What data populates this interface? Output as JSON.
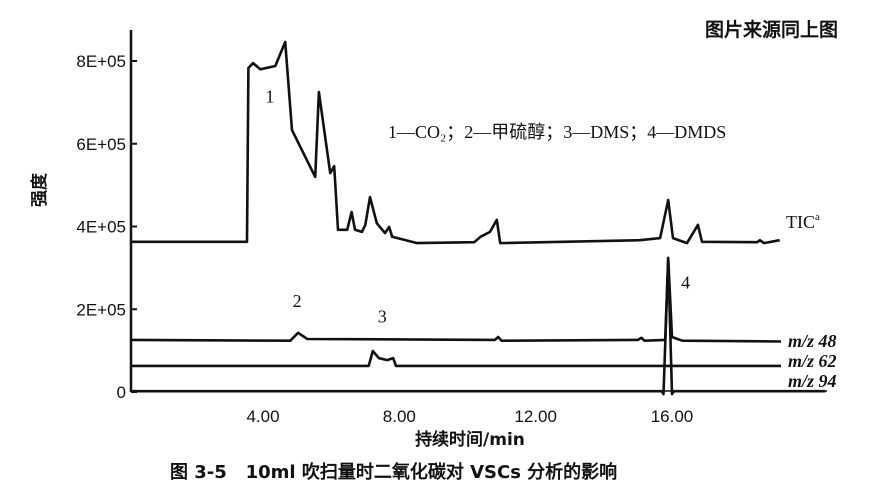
{
  "source_note": "图片来源同上图",
  "caption": "图 3-5   10ml 吹扫量时二氧化碳对 VSCs 分析的影响",
  "chart_data": {
    "type": "line",
    "title": "",
    "xlabel": "持续时间/min",
    "ylabel": "强度",
    "xlim": [
      0,
      20.5
    ],
    "ylim": [
      0,
      850000
    ],
    "x_ticks": [
      4,
      8,
      12,
      16
    ],
    "x_tick_labels": [
      "4.00",
      "8.00",
      "12.00",
      "16.00"
    ],
    "y_ticks": [
      0,
      200000,
      400000,
      600000,
      800000
    ],
    "y_tick_labels": [
      "0",
      "2E+05",
      "4E+05",
      "6E+05",
      "8E+05"
    ],
    "grid": false,
    "legend_text": "1—CO₂；2—甲硫醇；3—DMS；4—DMDS",
    "series": [
      {
        "name": "TIC",
        "name_sup": "a",
        "points": [
          [
            0.13,
            363000
          ],
          [
            3.53,
            363000
          ],
          [
            3.57,
            783000
          ],
          [
            3.71,
            795000
          ],
          [
            3.92,
            780000
          ],
          [
            4.36,
            788000
          ],
          [
            4.65,
            846000
          ],
          [
            4.85,
            633000
          ],
          [
            5.53,
            520000
          ],
          [
            5.64,
            725000
          ],
          [
            5.97,
            529000
          ],
          [
            6.09,
            546000
          ],
          [
            6.2,
            392000
          ],
          [
            6.47,
            392000
          ],
          [
            6.6,
            435000
          ],
          [
            6.7,
            392000
          ],
          [
            6.9,
            387000
          ],
          [
            7.0,
            404000
          ],
          [
            7.14,
            471000
          ],
          [
            7.34,
            408000
          ],
          [
            7.58,
            384000
          ],
          [
            7.7,
            399000
          ],
          [
            7.79,
            375000
          ],
          [
            8.52,
            360000
          ],
          [
            10.2,
            362000
          ],
          [
            10.38,
            375000
          ],
          [
            10.66,
            387000
          ],
          [
            10.86,
            416000
          ],
          [
            10.96,
            360000
          ],
          [
            15.06,
            367000
          ],
          [
            15.65,
            372000
          ],
          [
            15.89,
            464000
          ],
          [
            16.03,
            372000
          ],
          [
            16.44,
            360000
          ],
          [
            16.76,
            404000
          ],
          [
            16.88,
            363000
          ],
          [
            18.5,
            362000
          ],
          [
            18.58,
            367000
          ],
          [
            18.7,
            360000
          ],
          [
            19.16,
            367000
          ]
        ]
      },
      {
        "name": "m/z 48",
        "points": [
          [
            0.13,
            126000
          ],
          [
            4.8,
            124000
          ],
          [
            5.03,
            143000
          ],
          [
            5.3,
            128000
          ],
          [
            10.8,
            126000
          ],
          [
            10.9,
            133000
          ],
          [
            11.0,
            124000
          ],
          [
            15.0,
            126000
          ],
          [
            15.1,
            131000
          ],
          [
            15.2,
            124000
          ],
          [
            15.8,
            126000
          ],
          [
            15.89,
            324000
          ],
          [
            16.0,
            133000
          ],
          [
            16.3,
            124000
          ],
          [
            19.2,
            122000
          ]
        ]
      },
      {
        "name": "m/z 62",
        "points": [
          [
            0.13,
            63000
          ],
          [
            7.1,
            63000
          ],
          [
            7.22,
            99000
          ],
          [
            7.4,
            82000
          ],
          [
            7.64,
            77000
          ],
          [
            7.82,
            82000
          ],
          [
            7.9,
            63000
          ],
          [
            15.8,
            63000
          ],
          [
            16.5,
            63000
          ],
          [
            19.2,
            63000
          ]
        ]
      },
      {
        "name": "m/z 94",
        "points": [
          [
            0.13,
            2000
          ],
          [
            15.7,
            2000
          ],
          [
            15.75,
            -5000
          ],
          [
            15.89,
            324000
          ],
          [
            16.0,
            -5000
          ],
          [
            16.05,
            2000
          ],
          [
            20.5,
            2000
          ]
        ]
      }
    ],
    "peak_labels": [
      {
        "label": "1",
        "x": 4.2,
        "y": 700000
      },
      {
        "label": "2",
        "x": 5.0,
        "y": 205000
      },
      {
        "label": "3",
        "x": 7.5,
        "y": 168000
      },
      {
        "label": "4",
        "x": 16.4,
        "y": 250000
      }
    ]
  }
}
